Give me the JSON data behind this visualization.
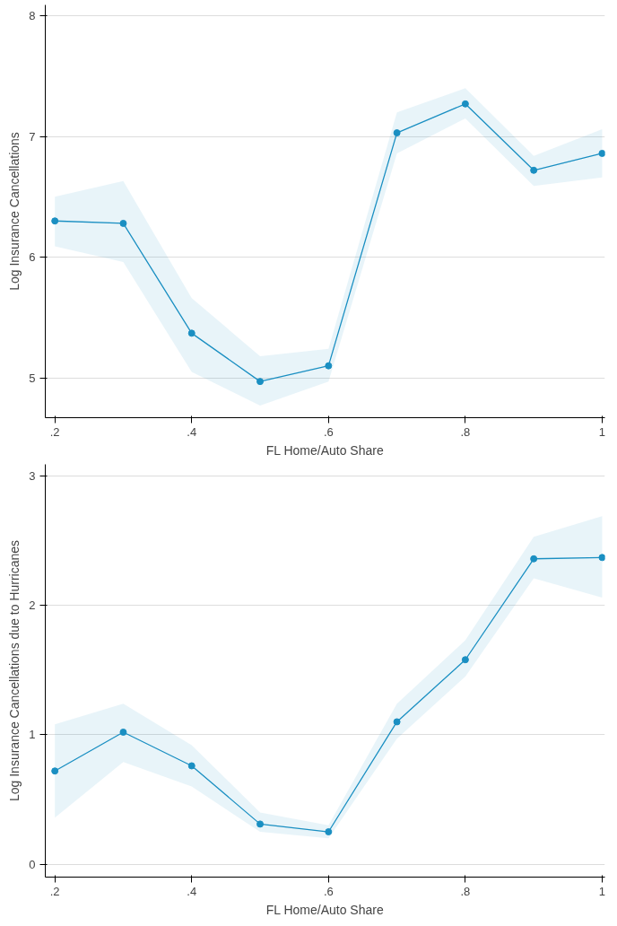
{
  "chart_data": [
    {
      "type": "line",
      "xlabel": "FL Home/Auto Share",
      "ylabel": "Log Insurance Cancellations",
      "x": [
        0.2,
        0.3,
        0.4,
        0.5,
        0.6,
        0.7,
        0.8,
        0.9,
        1
      ],
      "series": [
        {
          "color": "#1a8fc2",
          "values": [
            6.3,
            6.28,
            5.37,
            4.97,
            5.1,
            7.03,
            7.27,
            6.72,
            6.86
          ],
          "lower": [
            6.09,
            5.96,
            5.05,
            4.77,
            4.97,
            6.86,
            7.15,
            6.59,
            6.66
          ],
          "upper": [
            6.5,
            6.63,
            5.66,
            5.18,
            5.24,
            7.2,
            7.4,
            6.84,
            7.06
          ]
        }
      ],
      "xlim": [
        0.186,
        1.004
      ],
      "xticks": [
        {
          "value": 0.2,
          "label": ".2"
        },
        {
          "value": 0.4,
          "label": ".4"
        },
        {
          "value": 0.6,
          "label": ".6"
        },
        {
          "value": 0.8,
          "label": ".8"
        },
        1
      ],
      "ylim": [
        4.67,
        8.09
      ],
      "yticks": [
        5,
        6,
        7,
        8
      ],
      "grid": "y",
      "marker": "circle",
      "line_style": "solid"
    },
    {
      "type": "line",
      "xlabel": "FL Home/Auto Share",
      "ylabel": "Log Insurance Cancellations due to Hurricanes",
      "x": [
        0.2,
        0.3,
        0.4,
        0.5,
        0.6,
        0.7,
        0.8,
        0.9,
        1
      ],
      "series": [
        {
          "color": "#1a8fc2",
          "values": [
            0.72,
            1.02,
            0.76,
            0.31,
            0.25,
            1.1,
            1.58,
            2.36,
            2.37
          ],
          "lower": [
            0.36,
            0.79,
            0.6,
            0.25,
            0.2,
            0.97,
            1.45,
            2.21,
            2.06
          ],
          "upper": [
            1.08,
            1.24,
            0.92,
            0.4,
            0.3,
            1.24,
            1.73,
            2.53,
            2.69
          ]
        }
      ],
      "xlim": [
        0.186,
        1.004
      ],
      "xticks": [
        {
          "value": 0.2,
          "label": ".2"
        },
        {
          "value": 0.4,
          "label": ".4"
        },
        {
          "value": 0.6,
          "label": ".6"
        },
        {
          "value": 0.8,
          "label": ".8"
        },
        1
      ],
      "ylim": [
        -0.1,
        3.09
      ],
      "yticks": [
        0,
        1,
        2,
        3
      ],
      "grid": "y",
      "marker": "circle",
      "line_style": "solid"
    }
  ]
}
